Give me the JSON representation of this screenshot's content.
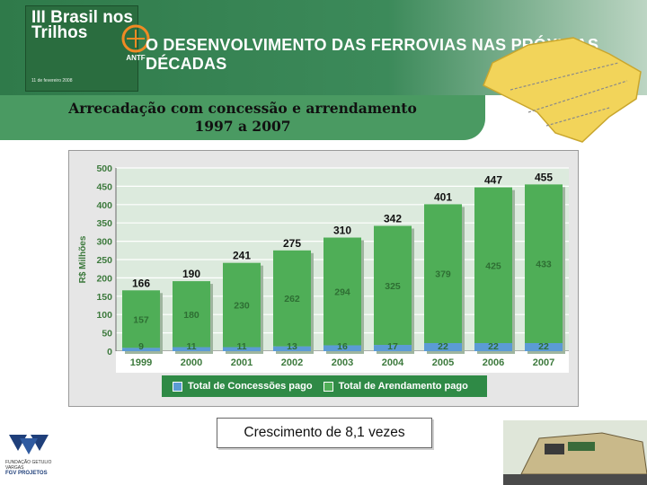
{
  "header": {
    "logo_title": "III Brasil nos Trilhos",
    "logo_sub": "11 de fevereiro 2008",
    "antf": "ANTF",
    "title": "O DESENVOLVIMENTO DAS FERROVIAS NAS PRÓXIMAS DÉCADAS"
  },
  "subtitle": {
    "line1": "Arrecadação com concessão e arrendamento",
    "line2": "1997 a 2007"
  },
  "chart_data": {
    "type": "bar",
    "ylabel": "R$ Milhões",
    "ylim": [
      0,
      500
    ],
    "yticks": [
      0,
      50,
      100,
      150,
      200,
      250,
      300,
      350,
      400,
      450,
      500
    ],
    "categories": [
      "1999",
      "2000",
      "2001",
      "2002",
      "2003",
      "2004",
      "2005",
      "2006",
      "2007"
    ],
    "series": [
      {
        "name": "Total de Concessões pago",
        "values": [
          9,
          11,
          11,
          13,
          16,
          17,
          22,
          22,
          22
        ],
        "color": "#5b9bd5"
      },
      {
        "name": "Total de Arendamento pago",
        "values": [
          157,
          180,
          230,
          262,
          294,
          325,
          379,
          425,
          433
        ],
        "color": "#4fae57"
      }
    ],
    "totals": [
      166,
      190,
      241,
      275,
      310,
      342,
      401,
      447,
      455
    ],
    "grid": true,
    "legend": "bottom"
  },
  "growth_note": "Crescimento de 8,1 vezes",
  "footer": {
    "fgv": "FUNDAÇÃO GETULIO VARGAS",
    "fgv_projetos": "FGV PROJETOS"
  },
  "colors": {
    "header_green": "#2f7a4a",
    "band_green": "#4a9a62",
    "bar_green": "#4fae57",
    "concession_blue": "#5b9bd5"
  }
}
